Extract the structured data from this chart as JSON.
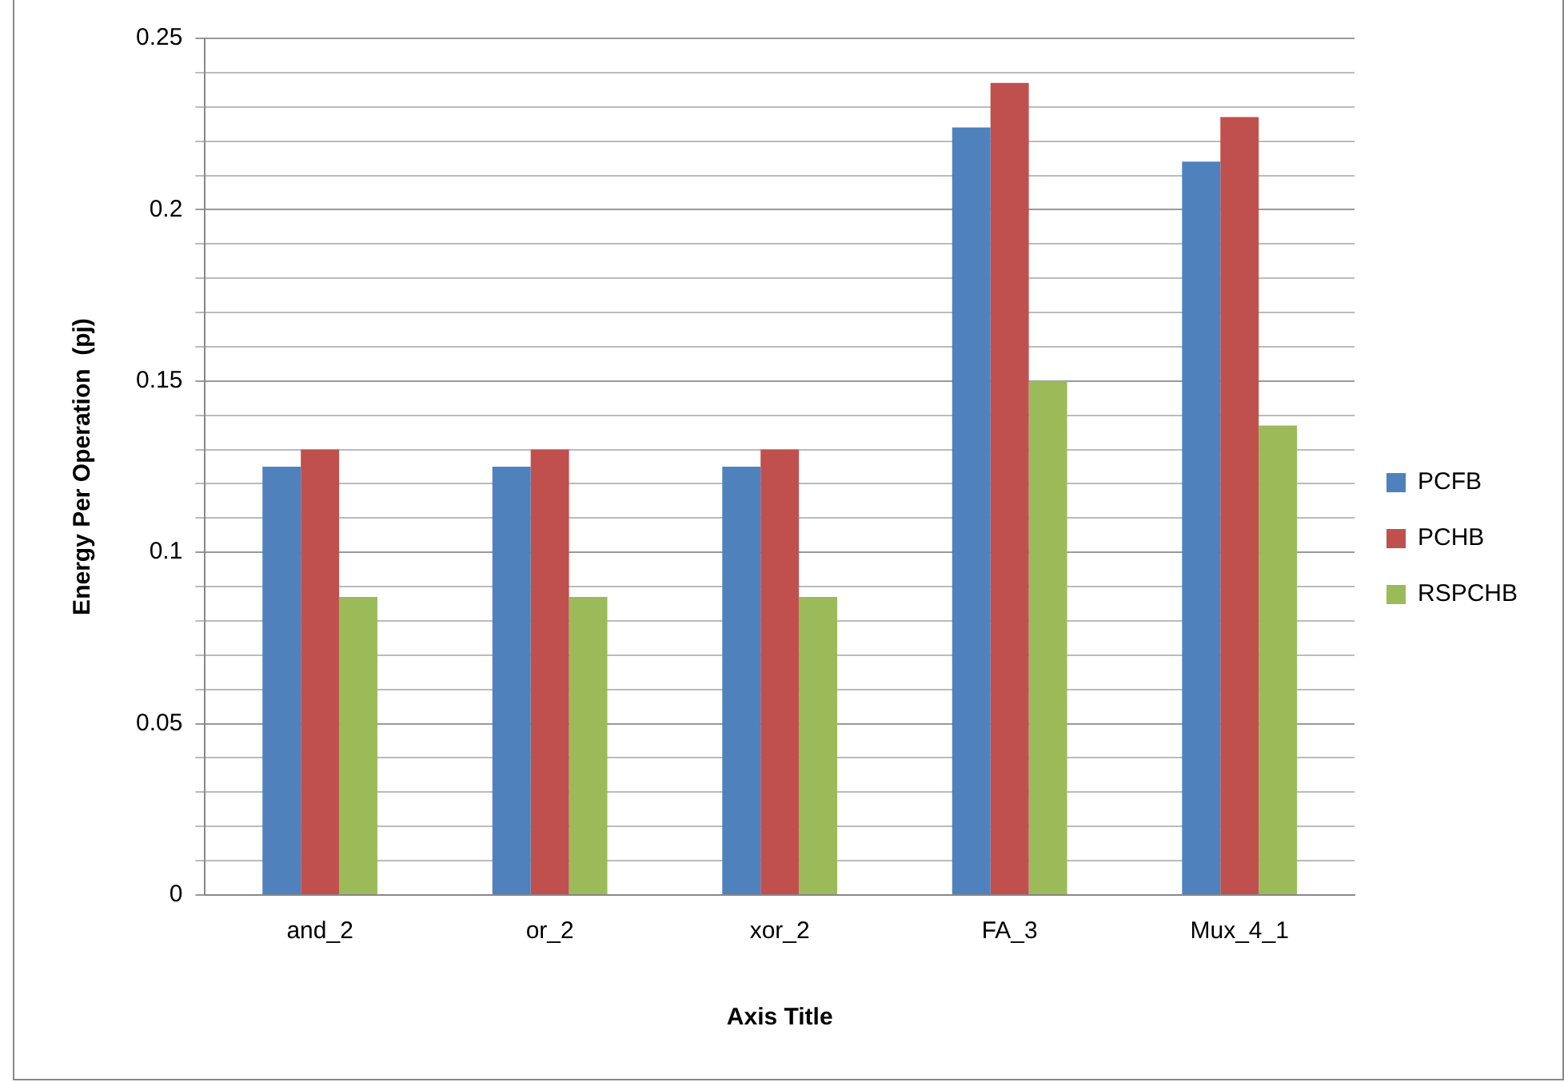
{
  "chart_data": {
    "type": "bar",
    "xlabel": "Axis Title",
    "ylabel": "Energy Per Operation  (pj)",
    "categories": [
      "and_2",
      "or_2",
      "xor_2",
      "FA_3",
      "Mux_4_1"
    ],
    "series": [
      {
        "name": "PCFB",
        "color": "#4f81bd",
        "values": [
          0.125,
          0.125,
          0.125,
          0.224,
          0.214
        ]
      },
      {
        "name": "PCHB",
        "color": "#c0504d",
        "values": [
          0.13,
          0.13,
          0.13,
          0.237,
          0.227
        ]
      },
      {
        "name": "RSPCHB",
        "color": "#9bbb59",
        "values": [
          0.087,
          0.087,
          0.087,
          0.15,
          0.137
        ]
      }
    ],
    "ylim": [
      0,
      0.25
    ],
    "yticks": [
      0,
      {
        "value": 0.01,
        "label": null
      },
      {
        "value": 0.02,
        "label": null
      },
      {
        "value": 0.03,
        "label": null
      },
      {
        "value": 0.04,
        "label": null
      },
      0.05,
      {
        "value": 0.06,
        "label": null
      },
      {
        "value": 0.07,
        "label": null
      },
      {
        "value": 0.08,
        "label": null
      },
      {
        "value": 0.09,
        "label": null
      },
      0.1,
      {
        "value": 0.11,
        "label": null
      },
      {
        "value": 0.12,
        "label": null
      },
      {
        "value": 0.13,
        "label": null
      },
      {
        "value": 0.14,
        "label": null
      },
      0.15,
      {
        "value": 0.16,
        "label": null
      },
      {
        "value": 0.17,
        "label": null
      },
      {
        "value": 0.18,
        "label": null
      },
      {
        "value": 0.19,
        "label": null
      },
      0.2,
      {
        "value": 0.21,
        "label": null
      },
      {
        "value": 0.22,
        "label": null
      },
      {
        "value": 0.23,
        "label": null
      },
      {
        "value": 0.24,
        "label": null
      },
      0.25
    ],
    "grid": "y",
    "legend": "right"
  }
}
